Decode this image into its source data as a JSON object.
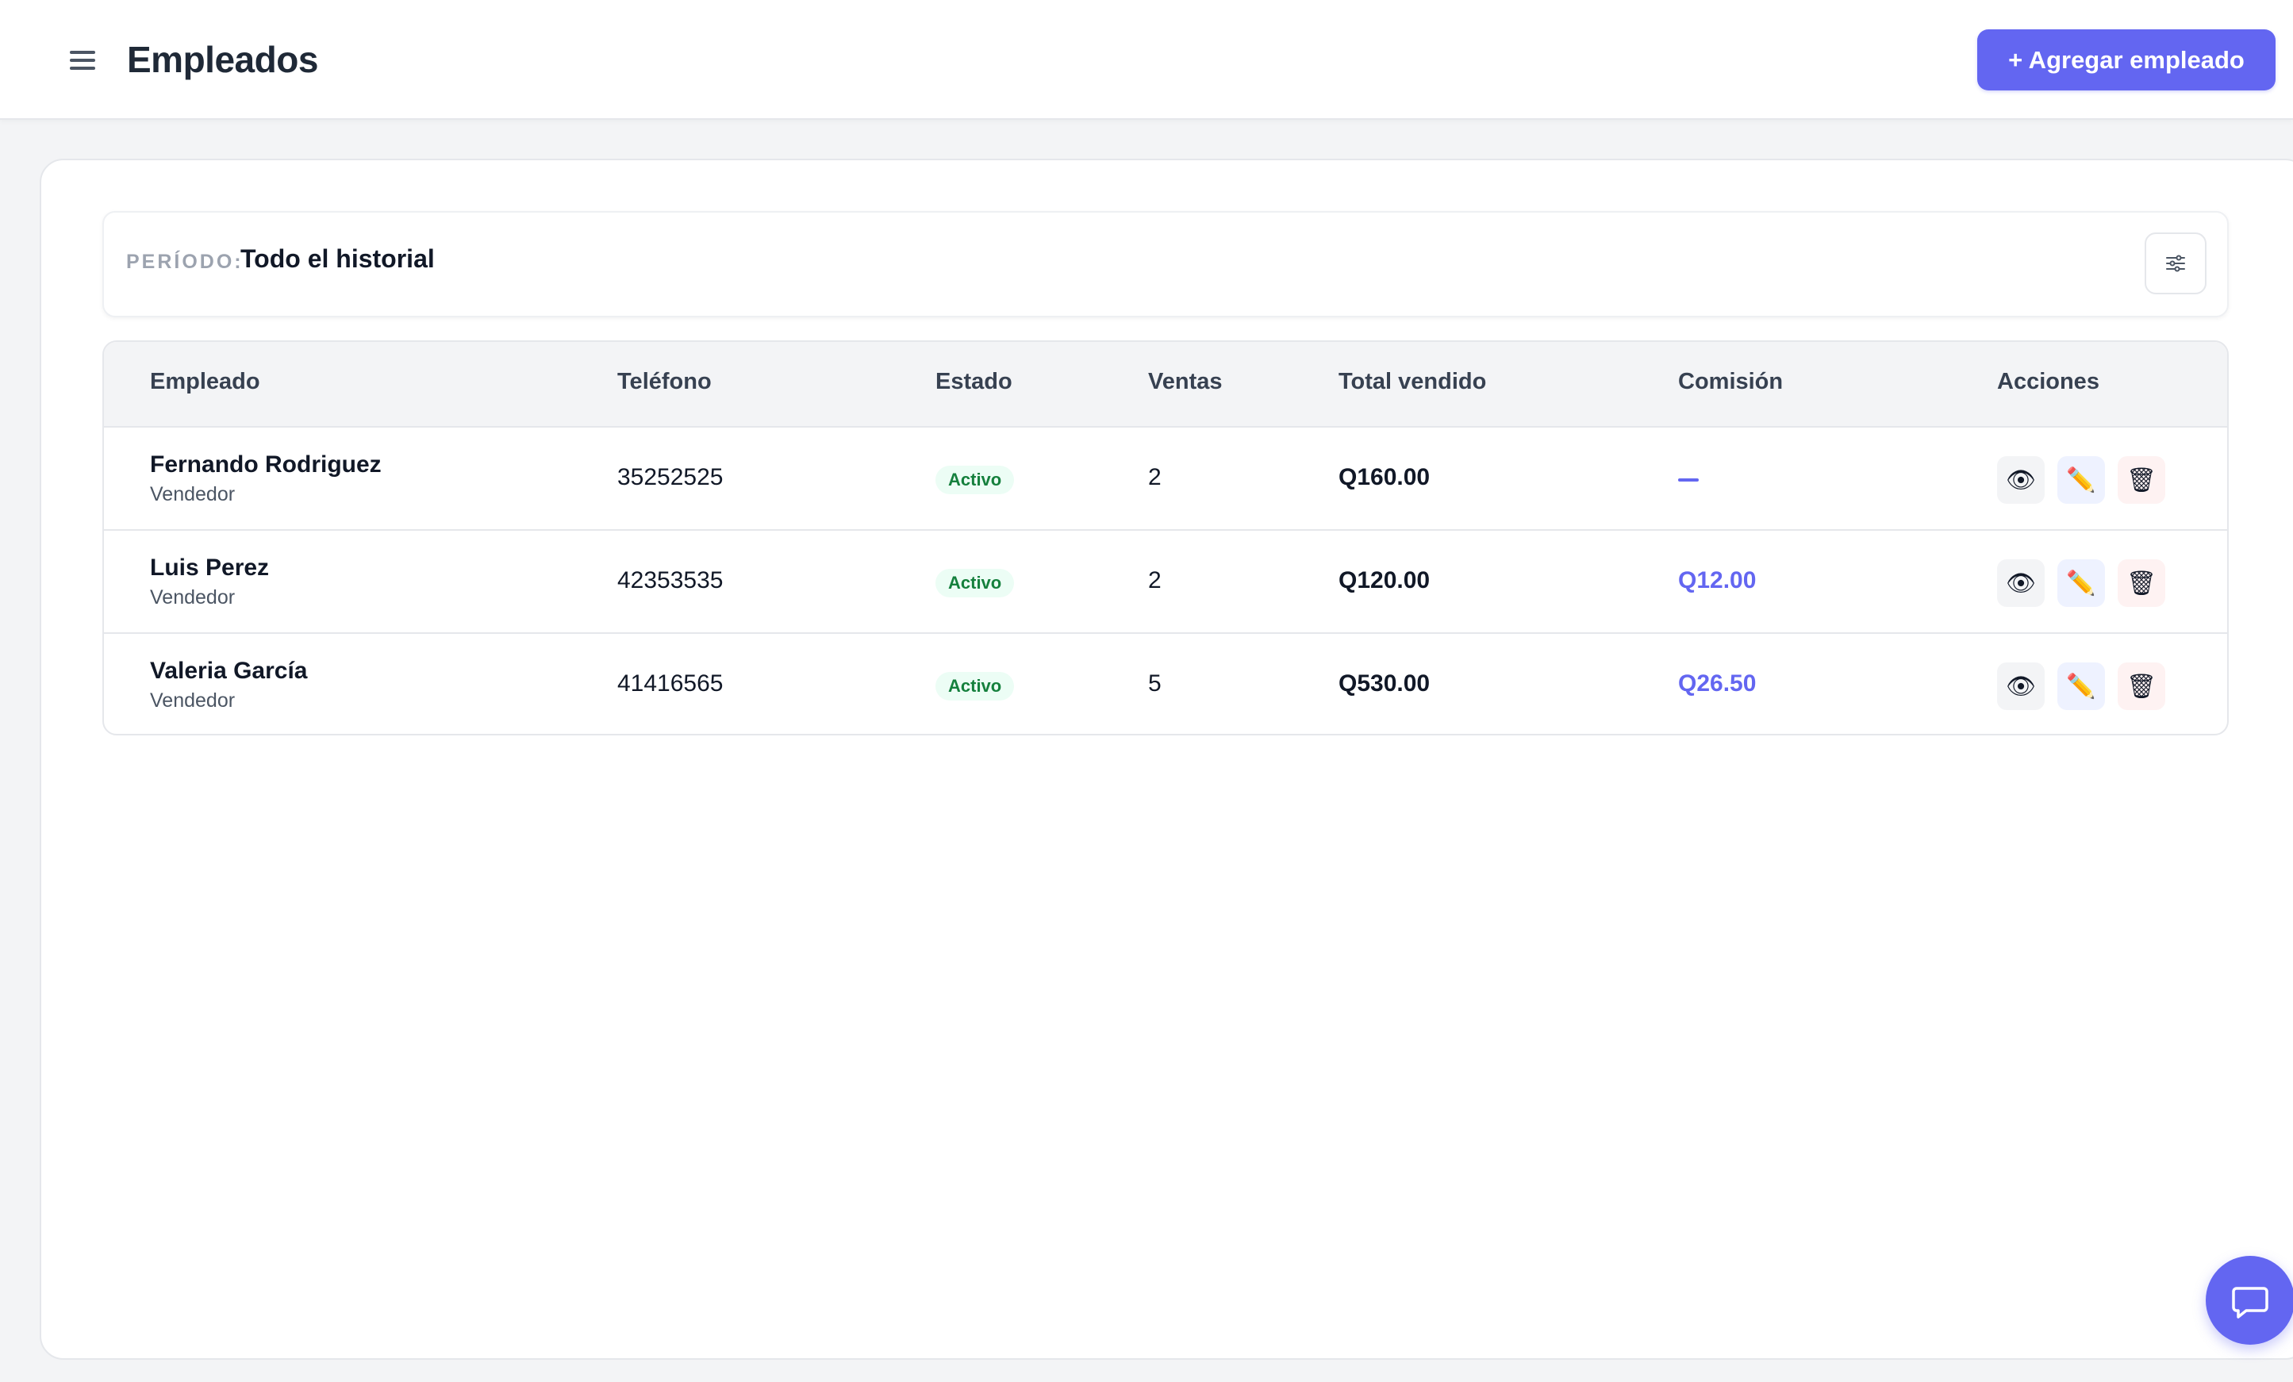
{
  "header": {
    "title": "Empleados",
    "add_button_label": "+ Agregar empleado"
  },
  "period": {
    "label": "PERÍODO:",
    "value": "Todo el historial"
  },
  "table": {
    "columns": [
      "Empleado",
      "Teléfono",
      "Estado",
      "Ventas",
      "Total vendido",
      "Comisión",
      "Acciones"
    ],
    "rows": [
      {
        "name": "Fernando Rodriguez",
        "role": "Vendedor",
        "phone": "35252525",
        "status": "Activo",
        "sales": "2",
        "total": "Q160.00",
        "commission": ""
      },
      {
        "name": "Luis Perez",
        "role": "Vendedor",
        "phone": "42353535",
        "status": "Activo",
        "sales": "2",
        "total": "Q120.00",
        "commission": "Q12.00"
      },
      {
        "name": "Valeria García",
        "role": "Vendedor",
        "phone": "41416565",
        "status": "Activo",
        "sales": "5",
        "total": "Q530.00",
        "commission": "Q26.50"
      }
    ],
    "action_icons": {
      "view": "👁",
      "edit": "✏️",
      "delete": "🗑"
    }
  },
  "colors": {
    "accent": "#6366f1",
    "status_active_bg": "#ecfdf5",
    "status_active_text": "#15803d"
  },
  "icons": {
    "menu": "hamburger-menu-icon",
    "filter": "sliders-icon",
    "chat": "chat-bubble-icon",
    "view": "eye-icon",
    "edit": "pencil-icon",
    "delete": "trash-icon"
  }
}
